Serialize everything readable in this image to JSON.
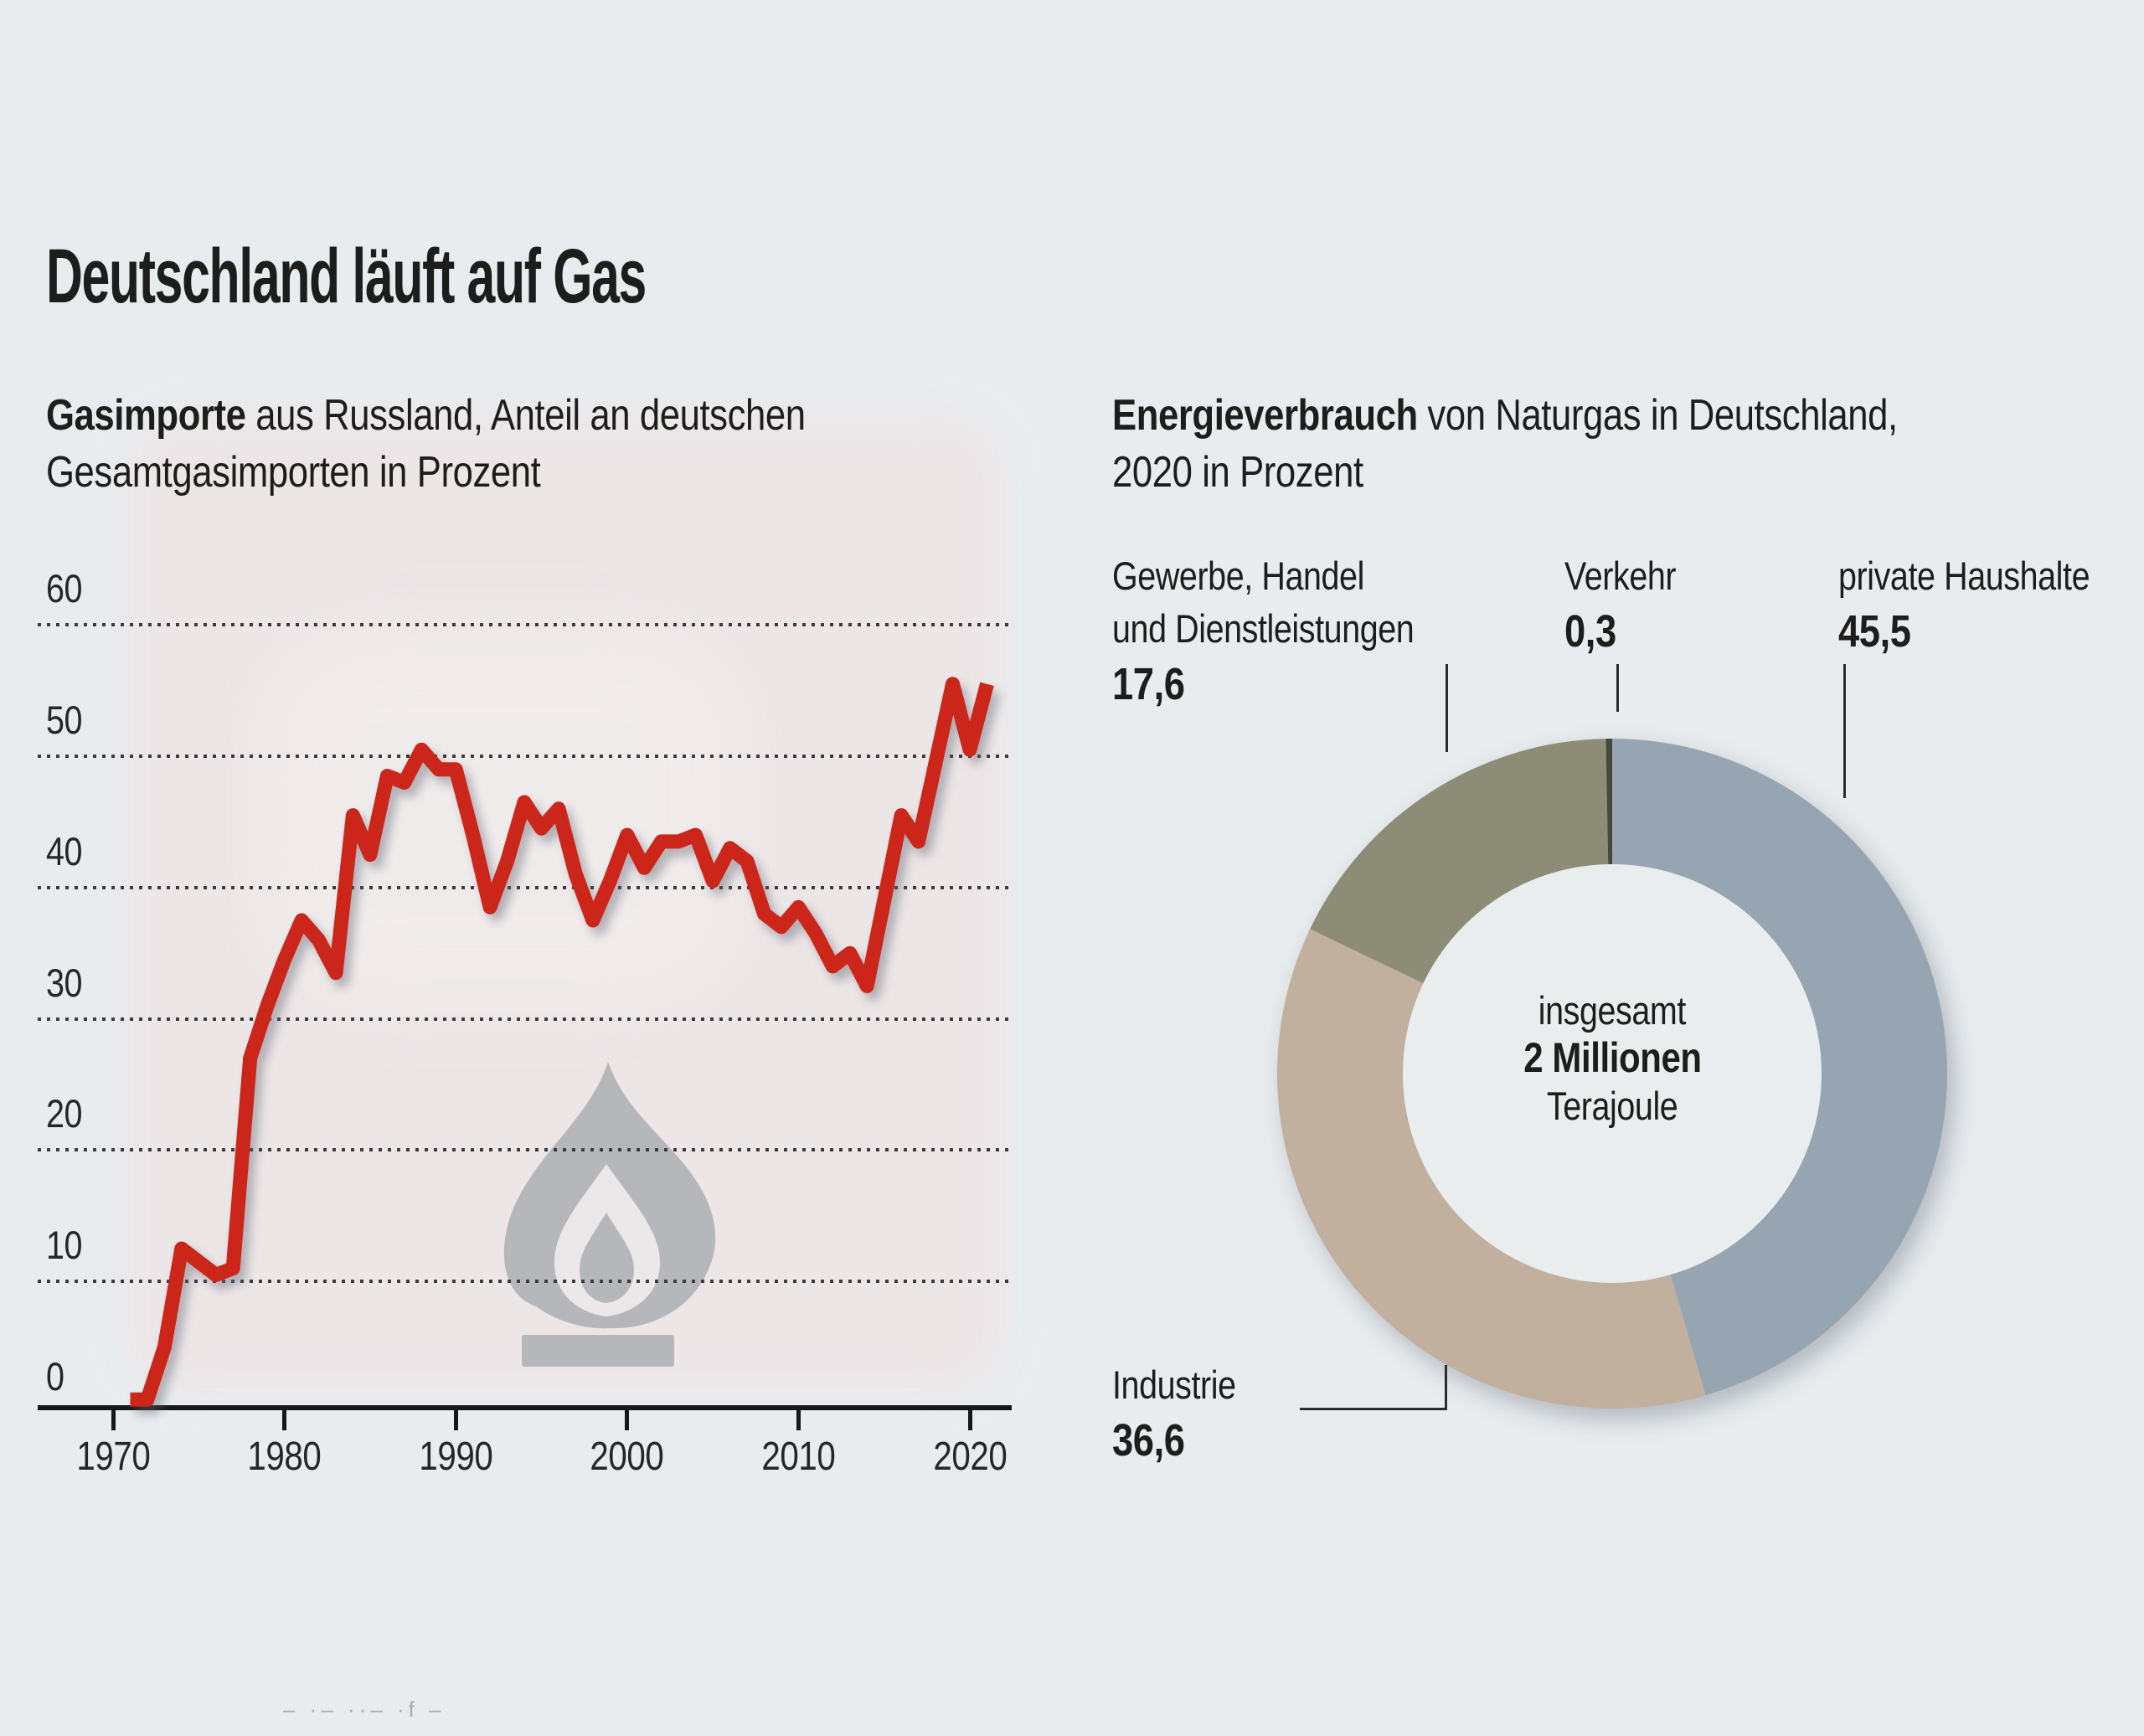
{
  "page": {
    "background": "#e8ecee",
    "text_color": "#1d1d1b"
  },
  "title": "Deutschland läuft auf Gas",
  "line_chart": {
    "heading": {
      "bold": "Gasimporte",
      "rest": " aus Russland, Anteil an deutschen",
      "line2": "Gesamtgasimporten in Prozent"
    },
    "y_ticks": [
      60,
      50,
      40,
      30,
      20,
      10,
      0
    ],
    "x_ticks": [
      "1970",
      "1980",
      "1990",
      "2000",
      "2010",
      "2020"
    ],
    "line_color": "#cb2619",
    "watermark": "gas-flame-icon",
    "grid_style": "dotted"
  },
  "donut_chart": {
    "heading": {
      "bold": "Energieverbrauch",
      "rest": " von Naturgas in Deutschland,",
      "line2": "2020 in Prozent"
    },
    "center": {
      "line1": "insgesamt",
      "line2": "2 Millionen",
      "line3": "Terajoule"
    },
    "callouts": {
      "gewerbe": {
        "label_line1": "Gewerbe, Handel",
        "label_line2": "und Dienstleistungen",
        "value": "17,6"
      },
      "verkehr": {
        "label": "Verkehr",
        "value": "0,3"
      },
      "haushalte": {
        "label": "private Haushalte",
        "value": "45,5"
      },
      "industrie": {
        "label": "Industrie",
        "value": "36,6"
      }
    }
  },
  "footer_fragment": "– ·– ··– ·f –",
  "chart_data": [
    {
      "type": "line",
      "title": "Gasimporte aus Russland, Anteil an deutschen Gesamtgasimporten in Prozent",
      "x": [
        1971,
        1972,
        1973,
        1974,
        1975,
        1976,
        1977,
        1978,
        1979,
        1980,
        1981,
        1982,
        1983,
        1984,
        1985,
        1986,
        1987,
        1988,
        1989,
        1990,
        1991,
        1992,
        1993,
        1994,
        1995,
        1996,
        1997,
        1998,
        1999,
        2000,
        2001,
        2002,
        2003,
        2004,
        2005,
        2006,
        2007,
        2008,
        2009,
        2010,
        2011,
        2012,
        2013,
        2014,
        2015,
        2016,
        2017,
        2018,
        2019,
        2020,
        2021
      ],
      "values": [
        1,
        1,
        5,
        12.5,
        11.5,
        10.5,
        11,
        27,
        31,
        34.5,
        37.5,
        36,
        33.5,
        45.5,
        42.5,
        48.5,
        48,
        50.5,
        49,
        49,
        44,
        38.5,
        42,
        46.5,
        44.5,
        46,
        41,
        37.5,
        40.5,
        44,
        41.5,
        43.5,
        43.5,
        44,
        40.5,
        43,
        42,
        38,
        37,
        38.5,
        36.5,
        34,
        35,
        32.5,
        39,
        45.5,
        43.5,
        49.5,
        55.5,
        50.5,
        55.5
      ],
      "ylim": [
        0,
        60
      ],
      "y_gridlines": [
        10,
        20,
        30,
        40,
        50,
        60
      ],
      "x_tick_labels": [
        1970,
        1980,
        1990,
        2000,
        2010,
        2020
      ],
      "line_color": "#cb2619",
      "legend": "none"
    },
    {
      "type": "pie",
      "donut": true,
      "title": "Energieverbrauch von Naturgas in Deutschland, 2020 in Prozent",
      "start": "12-o'clock, clockwise",
      "total_label": "insgesamt 2 Millionen Terajoule",
      "segments": [
        {
          "name": "private Haushalte",
          "value": 45.5,
          "color": "#96a5b1"
        },
        {
          "name": "Industrie",
          "value": 36.6,
          "color": "#c1b09e"
        },
        {
          "name": "Gewerbe, Handel und Dienstleistungen",
          "value": 17.6,
          "color": "#8d8c77"
        },
        {
          "name": "Verkehr",
          "value": 0.3,
          "color": "#45463e"
        }
      ]
    }
  ]
}
